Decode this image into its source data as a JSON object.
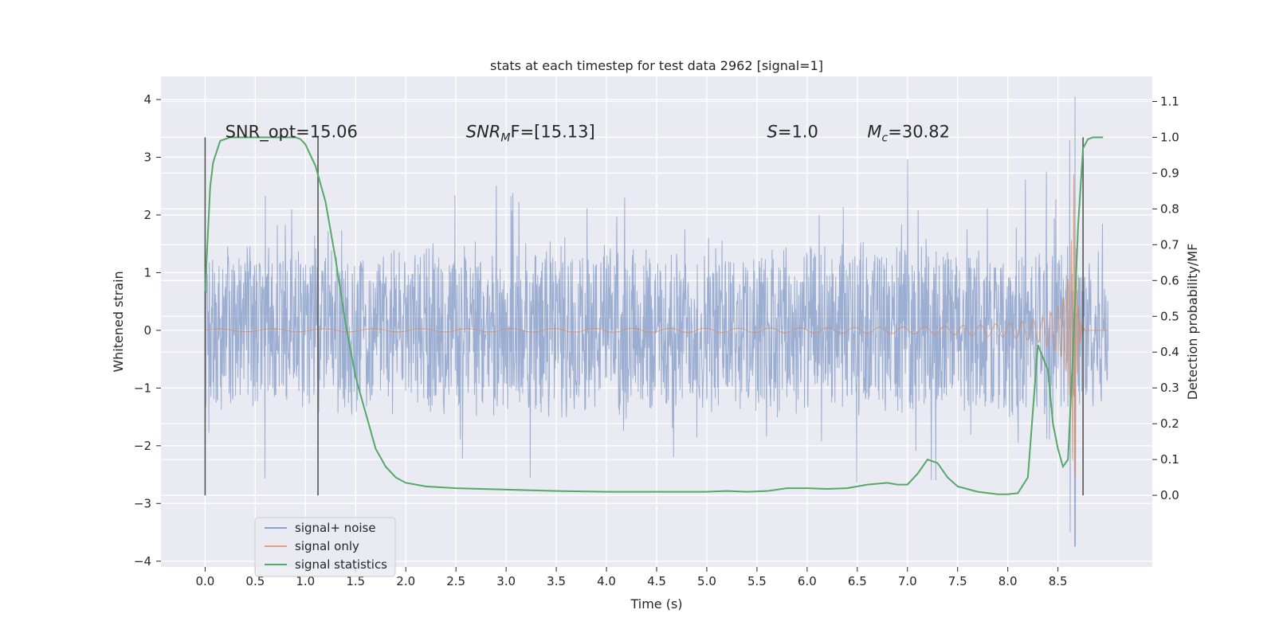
{
  "chart_data": {
    "type": "line",
    "title": "stats at each timestep for test data 2962 [signal=1]",
    "xlabel": "Time (s)",
    "ylabel": "Whitened strain",
    "y2label": "Detection probability/MF",
    "xlim": [
      -0.44,
      9.44
    ],
    "ylim": [
      -4.1,
      4.4
    ],
    "y2lim": [
      -0.2,
      1.17
    ],
    "x_ticks": [
      "0.0",
      "0.5",
      "1.0",
      "1.5",
      "2.0",
      "2.5",
      "3.0",
      "3.5",
      "4.0",
      "4.5",
      "5.0",
      "5.5",
      "6.0",
      "6.5",
      "7.0",
      "7.5",
      "8.0",
      "8.5"
    ],
    "y_ticks": [
      "4",
      "3",
      "2",
      "1",
      "0",
      "−1",
      "−2",
      "−3",
      "−4"
    ],
    "y2_ticks": [
      "1.1",
      "1.0",
      "0.9",
      "0.8",
      "0.7",
      "0.6",
      "0.5",
      "0.4",
      "0.3",
      "0.2",
      "0.1",
      "0.0"
    ],
    "grid": true,
    "legend_position": "lower-left",
    "annotations": [
      {
        "id": "snr_opt",
        "text": "SNR_opt=15.06",
        "x": 0.2,
        "y2": 0.995
      },
      {
        "id": "snr_mf",
        "base": "SNR",
        "sub": "M",
        "rest": "F=[15.13]",
        "x": 2.6,
        "y2": 0.995
      },
      {
        "id": "s",
        "base": "S",
        "rest": "=1.0",
        "x": 5.6,
        "y2": 0.995
      },
      {
        "id": "mc",
        "base": "M",
        "sub": "c",
        "rest": "=30.82",
        "x": 6.6,
        "y2": 0.995
      }
    ],
    "vlines": [
      {
        "x": 0.0,
        "y2_range": [
          0.0,
          1.0
        ]
      },
      {
        "x": 1.125,
        "y2_range": [
          0.0,
          1.0
        ]
      },
      {
        "x": 8.75,
        "y2_range": [
          0.0,
          1.0
        ]
      }
    ],
    "series": [
      {
        "name": "signal+ noise",
        "color": "#4c72b0",
        "kind": "noise band",
        "x_range": [
          0.0,
          9.0
        ],
        "typical_envelope": 1.35,
        "spike_max": 3.0,
        "late_extremes": [
          {
            "x": 8.67,
            "min": -3.75,
            "max": 4.05
          },
          {
            "x": 8.62,
            "min": -3.5,
            "max": 3.3
          }
        ]
      },
      {
        "name": "signal only",
        "color": "#dd8452",
        "kind": "chirp",
        "x_range": [
          0.0,
          9.0
        ],
        "merger_time": 8.67,
        "peak_amplitude": 2.7
      },
      {
        "name": "signal statistics",
        "color": "#55a868",
        "axis": "right",
        "x": [
          0.0,
          0.05,
          0.08,
          0.15,
          0.25,
          0.4,
          0.6,
          0.8,
          0.9,
          0.95,
          1.0,
          1.05,
          1.1,
          1.15,
          1.2,
          1.3,
          1.4,
          1.5,
          1.6,
          1.7,
          1.8,
          1.9,
          2.0,
          2.2,
          2.5,
          3.0,
          3.5,
          4.0,
          4.5,
          5.0,
          5.2,
          5.4,
          5.6,
          5.8,
          6.0,
          6.2,
          6.4,
          6.6,
          6.8,
          6.9,
          7.0,
          7.1,
          7.2,
          7.3,
          7.4,
          7.5,
          7.7,
          7.9,
          8.0,
          8.1,
          8.2,
          8.3,
          8.4,
          8.45,
          8.5,
          8.55,
          8.6,
          8.65,
          8.7,
          8.75,
          8.8,
          8.85,
          8.9,
          8.95
        ],
        "values": [
          0.57,
          0.86,
          0.93,
          0.99,
          1.0,
          1.0,
          1.0,
          1.0,
          1.0,
          0.995,
          0.98,
          0.95,
          0.92,
          0.87,
          0.82,
          0.66,
          0.48,
          0.33,
          0.23,
          0.13,
          0.08,
          0.05,
          0.035,
          0.025,
          0.02,
          0.016,
          0.012,
          0.01,
          0.01,
          0.01,
          0.012,
          0.01,
          0.012,
          0.02,
          0.02,
          0.018,
          0.02,
          0.03,
          0.035,
          0.03,
          0.03,
          0.06,
          0.1,
          0.09,
          0.05,
          0.025,
          0.01,
          0.003,
          0.003,
          0.006,
          0.05,
          0.42,
          0.35,
          0.2,
          0.13,
          0.08,
          0.1,
          0.4,
          0.75,
          0.97,
          0.995,
          1.0,
          1.0,
          1.0
        ]
      }
    ]
  }
}
